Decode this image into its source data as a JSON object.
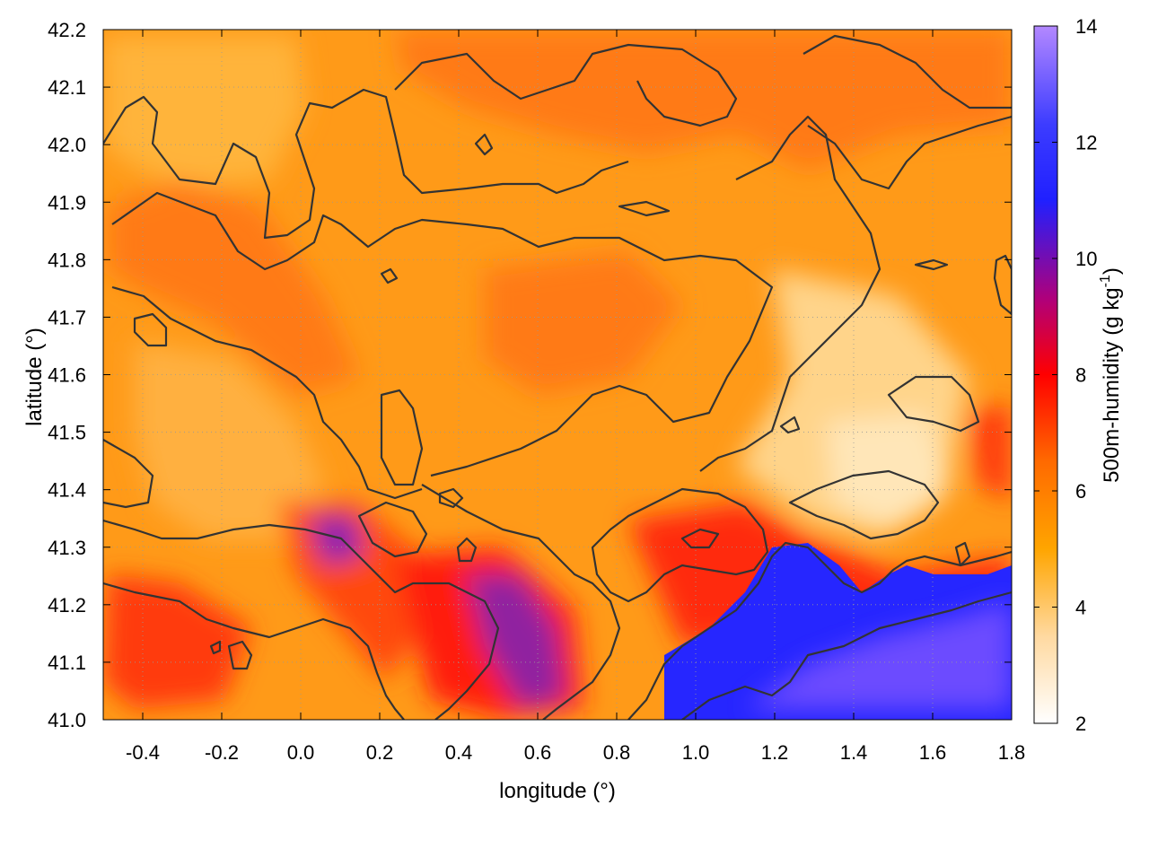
{
  "chart_data": {
    "type": "heatmap",
    "title": "",
    "xlabel": "longitude (°)",
    "ylabel": "latitude (°)",
    "xlim": [
      -0.5,
      1.8
    ],
    "ylim": [
      41.0,
      42.2
    ],
    "x_ticks": [
      "-0.4",
      "-0.2",
      "0.0",
      "0.2",
      "0.4",
      "0.6",
      "0.8",
      "1.0",
      "1.2",
      "1.4",
      "1.6",
      "1.8"
    ],
    "y_ticks": [
      "41.0",
      "41.1",
      "41.2",
      "41.3",
      "41.4",
      "41.5",
      "41.6",
      "41.7",
      "41.8",
      "41.9",
      "42.0",
      "42.1",
      "42.2"
    ],
    "grid": true,
    "colorbar": {
      "label": "500m-humidity (g kg",
      "label_sup": "-1",
      "label_tail": ")",
      "range": [
        2,
        14
      ],
      "ticks": [
        "2",
        "4",
        "6",
        "8",
        "10",
        "12",
        "14"
      ],
      "palette": [
        {
          "value": 2,
          "color": "#ffffff"
        },
        {
          "value": 3.5,
          "color": "#ffd9a0"
        },
        {
          "value": 5,
          "color": "#ffa500"
        },
        {
          "value": 6.5,
          "color": "#ff6a00"
        },
        {
          "value": 8,
          "color": "#ff0000"
        },
        {
          "value": 9.3,
          "color": "#b0007a"
        },
        {
          "value": 11,
          "color": "#2020ff"
        },
        {
          "value": 12.3,
          "color": "#3c3cff"
        },
        {
          "value": 14,
          "color": "#b388ff"
        }
      ]
    },
    "contour_color": "#333333"
  }
}
